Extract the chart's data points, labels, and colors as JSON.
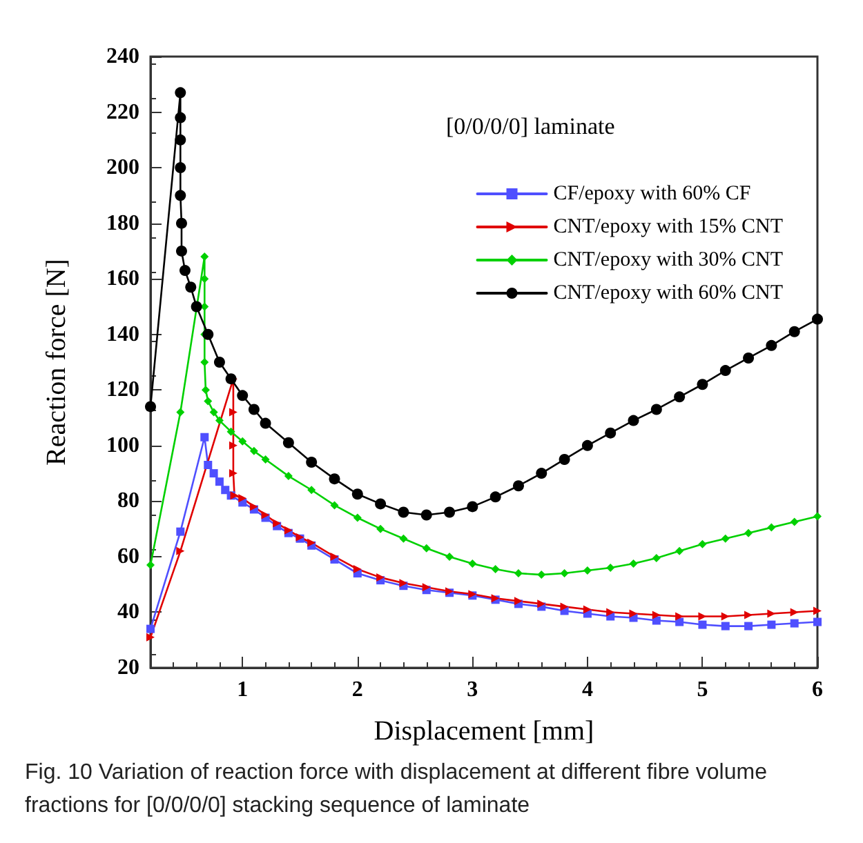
{
  "chart_data": {
    "type": "line",
    "xlabel": "Displacement [mm]",
    "ylabel": "Reaction force [N]",
    "xlim": [
      0.2,
      6
    ],
    "xticks": [
      1,
      2,
      3,
      4,
      5,
      6
    ],
    "ylim": [
      20,
      240
    ],
    "yticks": [
      20,
      40,
      60,
      80,
      100,
      120,
      140,
      160,
      180,
      200,
      220,
      240
    ],
    "grid": false,
    "legend": "top right",
    "line_style": "solid",
    "annotations": [
      "[0/0/0/0] laminate",
      "Fig. 10 Variation of reaction force with displacement at different fibre volume fractions for [0/0/0/0] stacking sequence of laminate"
    ],
    "series": [
      {
        "name": "CF/epoxy with 60% CF",
        "color": "#4f4fff",
        "marker": "square",
        "x": [
          0.2,
          0.46,
          0.67,
          0.7,
          0.75,
          0.8,
          0.85,
          0.9,
          1,
          1.1,
          1.2,
          1.3,
          1.4,
          1.5,
          1.6,
          1.8,
          2,
          2.2,
          2.4,
          2.6,
          2.8,
          3,
          3.2,
          3.4,
          3.6,
          3.8,
          4,
          4.2,
          4.4,
          4.6,
          4.8,
          5,
          5.2,
          5.4,
          5.6,
          5.8,
          6
        ],
        "values": [
          34,
          69,
          103,
          93,
          90,
          87,
          84,
          82,
          79.5,
          77,
          74,
          71,
          68.5,
          66.5,
          64,
          59,
          54,
          51.5,
          49.5,
          48,
          47,
          46,
          44.5,
          43,
          42,
          40.5,
          39.5,
          38.5,
          38,
          37,
          36.5,
          35.5,
          35,
          35,
          35.5,
          36,
          36.5
        ]
      },
      {
        "name": "CNT/epoxy with 15% CNT",
        "color": "#e00000",
        "marker": "triangle",
        "x": [
          0.2,
          0.46,
          0.92,
          0.92,
          0.92,
          0.92,
          0.93,
          1,
          1.1,
          1.2,
          1.3,
          1.4,
          1.5,
          1.6,
          1.8,
          2,
          2.2,
          2.4,
          2.6,
          2.8,
          3,
          3.2,
          3.4,
          3.6,
          3.8,
          4,
          4.2,
          4.4,
          4.6,
          4.8,
          5,
          5.2,
          5.4,
          5.6,
          5.8,
          6
        ],
        "values": [
          31,
          62,
          124,
          112,
          100,
          90,
          82,
          81,
          78,
          75,
          72,
          69.5,
          67,
          65,
          60,
          55.5,
          52.5,
          50.5,
          49,
          47.5,
          46.5,
          45,
          44,
          43,
          42,
          41,
          40,
          39.5,
          39,
          38.5,
          38.5,
          38.5,
          39,
          39.5,
          40,
          40.5
        ]
      },
      {
        "name": "CNT/epoxy with 30% CNT",
        "color": "#00d000",
        "marker": "diamond",
        "x": [
          0.2,
          0.46,
          0.67,
          0.67,
          0.67,
          0.67,
          0.67,
          0.68,
          0.7,
          0.75,
          0.8,
          0.9,
          1,
          1.1,
          1.2,
          1.4,
          1.6,
          1.8,
          2,
          2.2,
          2.4,
          2.6,
          2.8,
          3,
          3.2,
          3.4,
          3.6,
          3.8,
          4,
          4.2,
          4.4,
          4.6,
          4.8,
          5,
          5.2,
          5.4,
          5.6,
          5.8,
          6
        ],
        "values": [
          57,
          112,
          168,
          160,
          150,
          140,
          130,
          120,
          116,
          112,
          109,
          105,
          101.5,
          98,
          95,
          89,
          84,
          78.5,
          74,
          70,
          66.5,
          63,
          60,
          57.5,
          55.5,
          54,
          53.5,
          54,
          55,
          56,
          57.5,
          59.5,
          62,
          64.5,
          66.5,
          68.5,
          70.5,
          72.5,
          74.5
        ]
      },
      {
        "name": "CNT/epoxy with 60% CNT",
        "color": "#000000",
        "marker": "circle",
        "x": [
          0.2,
          0.46,
          0.46,
          0.46,
          0.46,
          0.46,
          0.47,
          0.47,
          0.5,
          0.55,
          0.6,
          0.7,
          0.8,
          0.9,
          1,
          1.1,
          1.2,
          1.4,
          1.6,
          1.8,
          2,
          2.2,
          2.4,
          2.6,
          2.8,
          3,
          3.2,
          3.4,
          3.6,
          3.8,
          4,
          4.2,
          4.4,
          4.6,
          4.8,
          5,
          5.2,
          5.4,
          5.6,
          5.8,
          6
        ],
        "values": [
          114,
          227,
          218,
          210,
          200,
          190,
          180,
          170,
          163,
          157,
          150,
          140,
          130,
          124,
          118,
          113,
          108,
          101,
          94,
          88,
          82.5,
          79,
          76,
          75,
          76,
          78,
          81.5,
          85.5,
          90,
          95,
          100,
          104.5,
          109,
          113,
          117.5,
          122,
          127,
          131.5,
          136,
          141,
          145.5
        ]
      }
    ]
  }
}
